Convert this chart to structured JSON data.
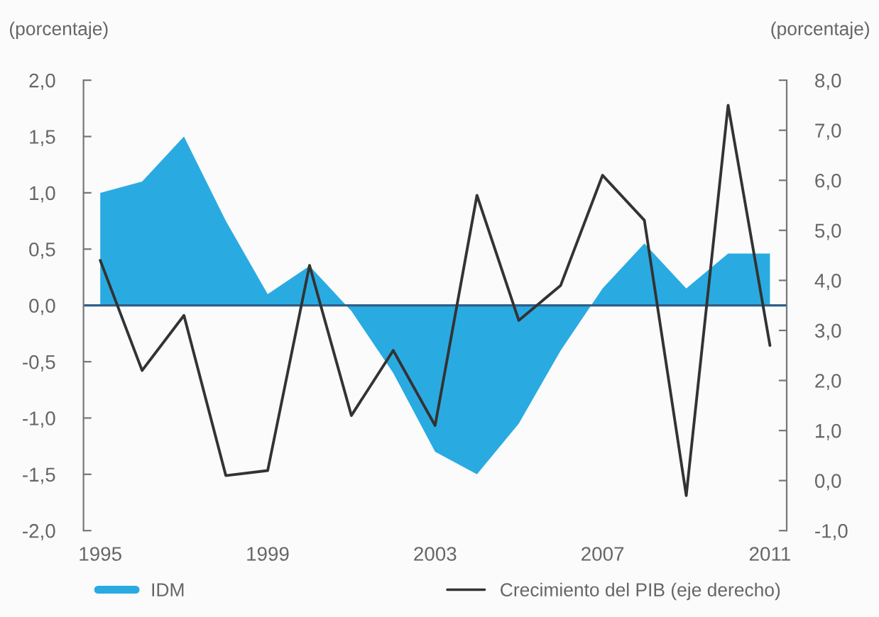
{
  "chart_data": {
    "type": "area",
    "ylabel": "(porcentaje)",
    "y2label": "(porcentaje)",
    "x": [
      1995,
      1996,
      1997,
      1998,
      1999,
      2000,
      2001,
      2002,
      2003,
      2004,
      2005,
      2006,
      2007,
      2008,
      2009,
      2010,
      2011
    ],
    "series": [
      {
        "name": "IDM",
        "color": "#29abe2",
        "values": [
          1.0,
          1.1,
          1.5,
          0.75,
          0.1,
          0.35,
          -0.05,
          -0.6,
          -1.3,
          -1.5,
          -1.05,
          -0.4,
          0.15,
          0.55,
          0.15,
          0.46,
          0.46
        ]
      },
      {
        "name": "Crecimiento del PIB (eje derecho)",
        "type": "line",
        "axis": "y2",
        "color": "#333333",
        "values": [
          4.4,
          2.2,
          3.3,
          0.1,
          0.2,
          4.3,
          1.3,
          2.6,
          1.1,
          5.7,
          3.2,
          3.9,
          6.1,
          5.2,
          -0.3,
          7.5,
          2.7
        ]
      }
    ],
    "xlim": [
      1994.6,
      2011.4
    ],
    "xticks": [
      1995,
      1999,
      2003,
      2007,
      2011
    ],
    "ylim": [
      -2.0,
      2.0
    ],
    "yticks": [
      {
        "value": -2.0,
        "label": "-2,0"
      },
      {
        "value": -1.5,
        "label": "-1,5"
      },
      {
        "value": -1.0,
        "label": "-1,0"
      },
      {
        "value": -0.5,
        "label": "-0,5"
      },
      {
        "value": 0.0,
        "label": "0,0"
      },
      {
        "value": 0.5,
        "label": "0,5"
      },
      {
        "value": 1.0,
        "label": "1,0"
      },
      {
        "value": 1.5,
        "label": "1,5"
      },
      {
        "value": 2.0,
        "label": "2,0"
      }
    ],
    "y2lim": [
      -1.0,
      8.0
    ],
    "y2ticks": [
      {
        "value": -1.0,
        "label": "-1,0"
      },
      {
        "value": 0.0,
        "label": "0,0"
      },
      {
        "value": 1.0,
        "label": "1,0"
      },
      {
        "value": 2.0,
        "label": "2,0"
      },
      {
        "value": 3.0,
        "label": "3,0"
      },
      {
        "value": 4.0,
        "label": "4,0"
      },
      {
        "value": 5.0,
        "label": "5,0"
      },
      {
        "value": 6.0,
        "label": "6,0"
      },
      {
        "value": 7.0,
        "label": "7,0"
      },
      {
        "value": 8.0,
        "label": "8,0"
      }
    ],
    "ref_lines": [
      {
        "axis": "y",
        "value": 0,
        "color": "#2f5f8a"
      }
    ],
    "legend": "bottom",
    "grid": false
  }
}
